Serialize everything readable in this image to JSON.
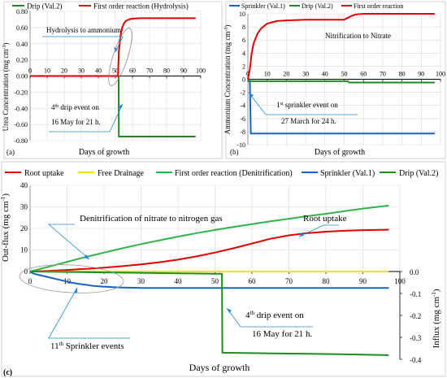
{
  "colors": {
    "drip": "#1f8a1f",
    "first_order": "#e00000",
    "sprinkler": "#1565c0",
    "root_uptake": "#e00000",
    "free_drainage": "#f5e600",
    "denitrification": "#2fb34a",
    "annotation": "#1c8ad6",
    "grid": "#d9d9d9",
    "axis": "#7f7f7f"
  },
  "panel_a": {
    "panel_label": "(a)",
    "legend": [
      "Drip (Val.2)",
      "First order reaction (Hydrolysis)"
    ],
    "ylabel": "Urea Concentration (mg cm",
    "ylabel_sup": "-3",
    "ylabel_end": ")",
    "xlabel": "Days of growth",
    "yticks": [
      "0.80",
      "0.60",
      "0.40",
      "0.20",
      "0.00",
      "-0.20",
      "-0.40",
      "-0.60",
      "-0.80"
    ],
    "xticks": [
      "0",
      "10",
      "20",
      "30",
      "40",
      "50",
      "60",
      "70",
      "80",
      "90",
      "100"
    ],
    "annotation1": "Hydrolysis to ammonium",
    "annotation2_line1_pre": "4",
    "annotation2_line1_sup": "th",
    "annotation2_line1_post": " drip event on",
    "annotation2_line2": "16 May for 21 h."
  },
  "panel_b": {
    "panel_label": "(b)",
    "legend": [
      "Sprinkler (Val.1)",
      "Drip (Val.2)",
      "First order reaction"
    ],
    "ylabel": "Ammonium Concentration (mg cm",
    "ylabel_sup": "-3",
    "ylabel_end": ")",
    "xlabel": "Days of growth",
    "yticks": [
      "10",
      "8",
      "6",
      "4",
      "2",
      "0",
      "-2",
      "-4",
      "-6",
      "-8",
      "-10"
    ],
    "xticks": [
      "0",
      "10",
      "20",
      "30",
      "40",
      "50",
      "60",
      "70",
      "80",
      "90",
      "100"
    ],
    "annotation1": "Nitrification to Nitrate",
    "annotation2_line1_pre": "1",
    "annotation2_line1_sup": "st",
    "annotation2_line1_post": " sprinkler event on",
    "annotation2_line2": "27 March for 24 h."
  },
  "panel_c": {
    "panel_label": "(c)",
    "legend": [
      "Root uptake",
      "Free Drainage",
      "First order reaction (Denitrification)",
      "Sprinkler (Val.1)",
      "Drip (Val.2)"
    ],
    "ylabel_left": "Out-flux (mg cm",
    "ylabel_left_sup": "-1",
    "ylabel_left_end": ")",
    "ylabel_right": "Influx (mg cm",
    "ylabel_right_sup": "-1",
    "ylabel_right_end": ")",
    "xlabel": "Days of growth",
    "yticks_left": [
      "40",
      "30",
      "20",
      "10",
      "0"
    ],
    "yticks_right": [
      "0.0",
      "-0.1",
      "-0.2",
      "-0.3",
      "-0.4"
    ],
    "xticks": [
      "0",
      "10",
      "20",
      "30",
      "40",
      "50",
      "60",
      "70",
      "80",
      "90",
      "100"
    ],
    "annotation_denit": "Denitrification of nitrate to nitrogen gas",
    "annotation_root": "Root uptake",
    "annotation_drip_line1_pre": "4",
    "annotation_drip_line1_sup": "th",
    "annotation_drip_line1_post": " drip event on",
    "annotation_drip_line2": "16 May for 21 h.",
    "annotation_sprinkler_pre": "11",
    "annotation_sprinkler_sup": "th",
    "annotation_sprinkler_post": " Sprinkler events"
  },
  "chart_data": [
    {
      "type": "line",
      "xlabel": "Days of growth",
      "ylabel": "Urea Concentration (mg cm-3)",
      "xlim": [
        0,
        100
      ],
      "ylim": [
        -0.8,
        0.8
      ],
      "series": [
        {
          "name": "Drip (Val.2)",
          "x": [
            0,
            51.9,
            52,
            54,
            97
          ],
          "y": [
            0,
            0,
            -0.75,
            -0.75,
            -0.75
          ]
        },
        {
          "name": "First order reaction (Hydrolysis)",
          "x": [
            0,
            51.5,
            52,
            53,
            54,
            55,
            56,
            58,
            60,
            65,
            70,
            97
          ],
          "y": [
            0,
            0,
            0.3,
            0.5,
            0.6,
            0.65,
            0.68,
            0.7,
            0.71,
            0.715,
            0.715,
            0.715
          ]
        }
      ]
    },
    {
      "type": "line",
      "xlabel": "Days of growth",
      "ylabel": "Ammonium Concentration (mg cm-3)",
      "xlim": [
        0,
        100
      ],
      "ylim": [
        -10,
        10
      ],
      "series": [
        {
          "name": "Sprinkler (Val.1)",
          "x": [
            0,
            1,
            1.5,
            97
          ],
          "y": [
            0,
            0,
            -8.3,
            -8.3
          ]
        },
        {
          "name": "Drip (Val.2)",
          "x": [
            0,
            52,
            52.5,
            97
          ],
          "y": [
            -0.3,
            -0.3,
            -0.5,
            -0.5
          ]
        },
        {
          "name": "First order reaction",
          "x": [
            0,
            1,
            2,
            3,
            5,
            7,
            10,
            15,
            20,
            30,
            40,
            50,
            52,
            54,
            56,
            60,
            70,
            80,
            97
          ],
          "y": [
            0,
            1.5,
            4,
            5.5,
            7,
            7.8,
            8.5,
            8.9,
            9.0,
            9.1,
            9.1,
            9.1,
            9.4,
            9.7,
            9.9,
            10,
            10,
            10,
            10
          ]
        }
      ]
    },
    {
      "type": "line",
      "xlabel": "Days of growth",
      "ylabel": "Out-flux (mg cm-1)",
      "ylabel_right": "Influx (mg cm-1)",
      "xlim": [
        0,
        100
      ],
      "ylim": [
        0,
        40
      ],
      "ylim_right": [
        -0.4,
        0.0
      ],
      "series": [
        {
          "name": "Root uptake",
          "axis": "left",
          "x": [
            0,
            5,
            10,
            15,
            20,
            25,
            30,
            35,
            40,
            45,
            50,
            55,
            60,
            65,
            70,
            75,
            80,
            85,
            90,
            97
          ],
          "y": [
            0,
            0.3,
            0.7,
            1.2,
            1.8,
            2.5,
            3.3,
            4.3,
            5.5,
            7,
            8.8,
            10.8,
            13,
            15.2,
            16.8,
            17.8,
            18.5,
            18.9,
            19.2,
            19.4
          ]
        },
        {
          "name": "Free Drainage",
          "axis": "left",
          "x": [
            0,
            97
          ],
          "y": [
            0,
            0
          ]
        },
        {
          "name": "First order reaction (Denitrification)",
          "axis": "left",
          "x": [
            0,
            5,
            10,
            15,
            20,
            25,
            30,
            35,
            40,
            45,
            50,
            55,
            60,
            65,
            70,
            75,
            80,
            85,
            90,
            97
          ],
          "y": [
            0,
            2.2,
            4.5,
            6.7,
            8.8,
            10.8,
            12.7,
            14.5,
            16.2,
            17.8,
            19.3,
            20.7,
            22.0,
            23.3,
            24.5,
            25.7,
            26.8,
            28.0,
            29.2,
            30.6
          ]
        },
        {
          "name": "Sprinkler (Val.1)",
          "axis": "right",
          "x": [
            0,
            1,
            3,
            5,
            7,
            9,
            11,
            13,
            15,
            17,
            19,
            21,
            23,
            25,
            28,
            30,
            32,
            97
          ],
          "y": [
            0,
            -0.01,
            -0.018,
            -0.026,
            -0.034,
            -0.042,
            -0.05,
            -0.056,
            -0.06,
            -0.065,
            -0.068,
            -0.07,
            -0.072,
            -0.073,
            -0.074,
            -0.075,
            -0.075,
            -0.075
          ]
        },
        {
          "name": "Drip (Val.2)",
          "axis": "right",
          "x": [
            0,
            10,
            20,
            30,
            40,
            50,
            51.9,
            52,
            60,
            70,
            80,
            90,
            97
          ],
          "y": [
            0,
            -0.002,
            -0.004,
            -0.006,
            -0.008,
            -0.01,
            -0.01,
            -0.37,
            -0.372,
            -0.374,
            -0.376,
            -0.379,
            -0.381
          ]
        }
      ]
    }
  ]
}
